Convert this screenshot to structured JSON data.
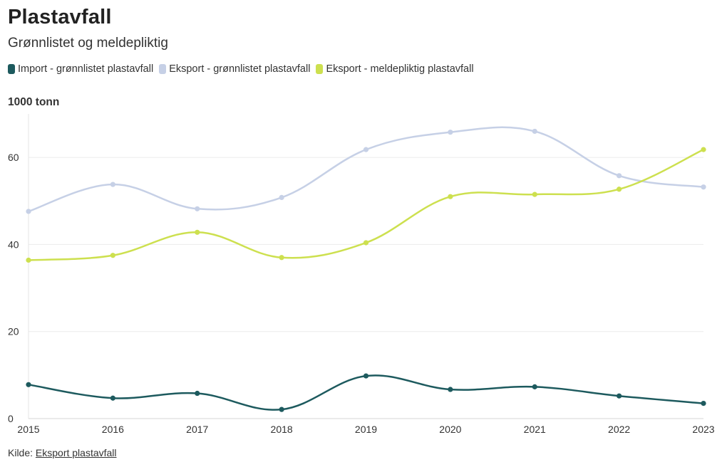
{
  "header": {
    "title": "Plastavfall",
    "subtitle": "Grønnlistet og meldepliktig"
  },
  "footer": {
    "source_label": "Kilde:",
    "source_link": "Eksport plastavfall"
  },
  "chart_data": {
    "type": "line",
    "title": "Plastavfall",
    "subtitle": "Grønnlistet og meldepliktig",
    "ylabel": "1000 tonn",
    "xlabel": "",
    "x": [
      "2015",
      "2016",
      "2017",
      "2018",
      "2019",
      "2020",
      "2021",
      "2022",
      "2023"
    ],
    "ylim": [
      0,
      70
    ],
    "yticks": [
      0,
      20,
      40,
      60
    ],
    "grid": true,
    "legend_position": "top-left",
    "series": [
      {
        "name": "Import - grønnlistet plastavfall",
        "color": "#1d5a5e",
        "values": [
          7.8,
          4.7,
          5.8,
          2.1,
          9.8,
          6.7,
          7.3,
          5.2,
          3.5
        ]
      },
      {
        "name": "Eksport - grønnlistet plastavfall",
        "color": "#c6d0e6",
        "values": [
          47.6,
          53.8,
          48.2,
          50.8,
          61.8,
          65.8,
          66.0,
          55.8,
          53.2
        ]
      },
      {
        "name": "Eksport - meldepliktig plastavfall",
        "color": "#cde04f",
        "values": [
          36.4,
          37.5,
          42.8,
          37.0,
          40.4,
          51.0,
          51.5,
          52.7,
          61.8
        ]
      }
    ]
  }
}
